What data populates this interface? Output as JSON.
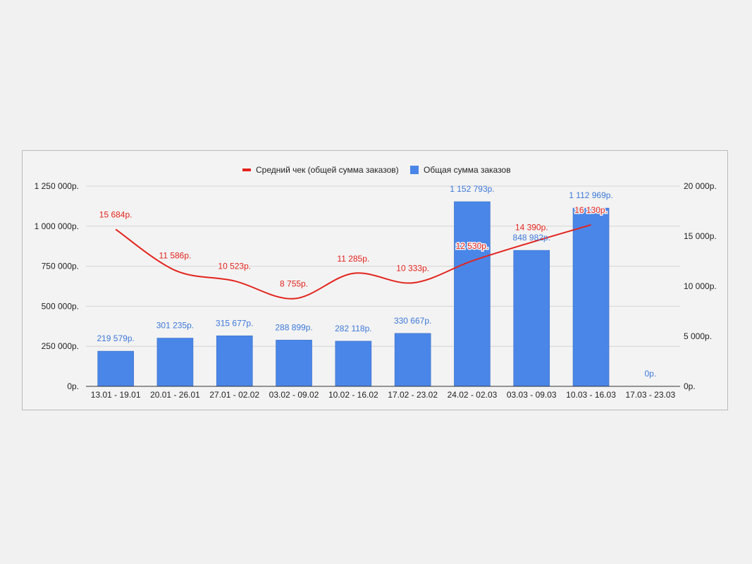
{
  "chart_data": {
    "type": "bar",
    "categories": [
      "13.01 - 19.01",
      "20.01 - 26.01",
      "27.01 - 02.02",
      "03.02 - 09.02",
      "10.02 - 16.02",
      "17.02 - 23.02",
      "24.02 - 02.03",
      "03.03 - 09.03",
      "10.03 - 16.03",
      "17.03 - 23.03"
    ],
    "series": [
      {
        "name": "Общая сумма заказов",
        "type": "bar",
        "axis": "left",
        "color": "#4a86e8",
        "label_color": "#3d78d8",
        "values": [
          219579,
          301235,
          315677,
          288899,
          282118,
          330667,
          1152793,
          848982,
          1112969,
          0
        ],
        "labels": [
          "219 579р.",
          "301 235р.",
          "315 677р.",
          "288 899р.",
          "282 118р.",
          "330 667р.",
          "1 152 793р.",
          "848 982р.",
          "1 112 969р.",
          "0р."
        ]
      },
      {
        "name": "Средний чек (общей сумма заказов)",
        "type": "line",
        "axis": "right",
        "color": "#e3231c",
        "values": [
          15684,
          11586,
          10523,
          8755,
          11285,
          10333,
          12530,
          14390,
          16130,
          null
        ],
        "labels": [
          "15 684р.",
          "11 586р.",
          "10 523р.",
          "8 755р.",
          "11 285р.",
          "10 333р.",
          "12 530р.",
          "14 390р.",
          "16 130р.",
          ""
        ]
      }
    ],
    "y_left": {
      "ylim": [
        0,
        1250000
      ],
      "ticks": [
        "0р.",
        "250 000р.",
        "500 000р.",
        "750 000р.",
        "1 000 000р.",
        "1 250 000р."
      ]
    },
    "y_right": {
      "ylim": [
        0,
        20000
      ],
      "ticks": [
        "0р.",
        "5 000р.",
        "10 000р.",
        "15 000р.",
        "20 000р."
      ]
    },
    "grid": true,
    "legend_position": "top-center"
  }
}
